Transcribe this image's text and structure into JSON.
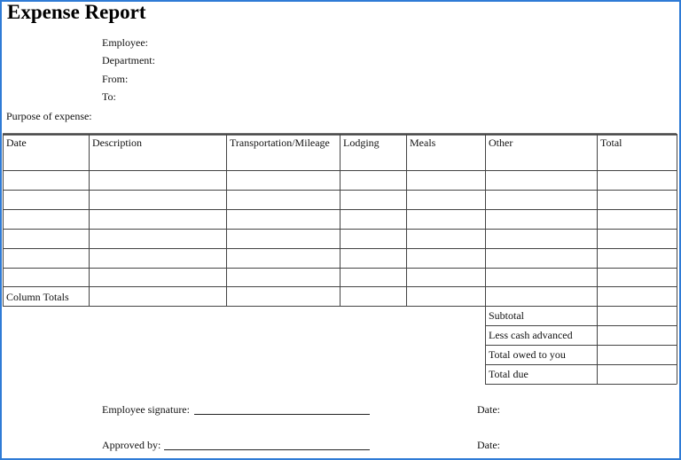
{
  "header": {
    "title": "Expense Report"
  },
  "fields": [
    "Employee:",
    "Department:",
    "From:",
    "To:"
  ],
  "purpose_label": "Purpose of expense:",
  "table": {
    "columns": [
      "Date",
      "Description",
      "Transportation/Mileage",
      "Lodging",
      "Meals",
      "Other",
      "Total"
    ],
    "footer_label": "Column Totals"
  },
  "summary": [
    "Subtotal",
    "Less cash advanced",
    "Total owed to you",
    "Total due"
  ],
  "signatures": [
    {
      "label": "Employee signature:",
      "date_label": "Date:"
    },
    {
      "label": "Approved by:",
      "date_label": "Date:"
    }
  ]
}
